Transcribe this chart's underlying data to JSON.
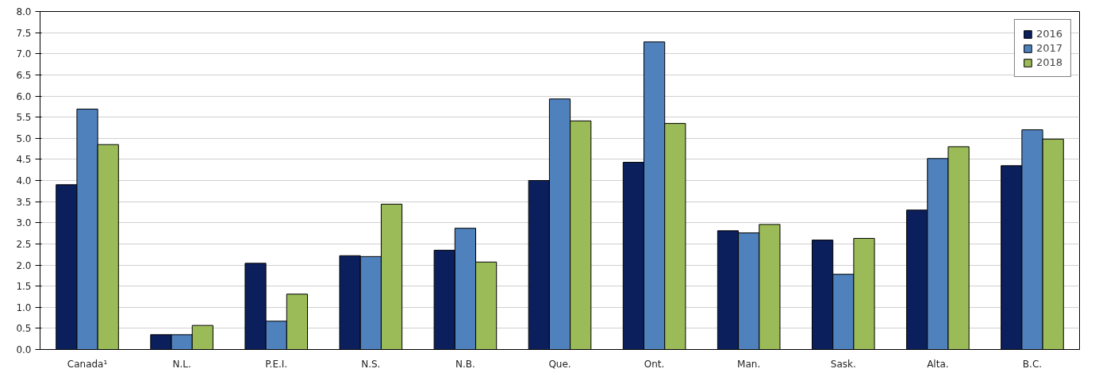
{
  "chart_data": {
    "type": "bar",
    "categories": [
      "Canada¹",
      "N.L.",
      "P.E.I.",
      "N.S.",
      "N.B.",
      "Que.",
      "Ont.",
      "Man.",
      "Sask.",
      "Alta.",
      "B.C."
    ],
    "series": [
      {
        "name": "2016",
        "color": "#0b1f5c",
        "values": [
          3.9,
          0.35,
          2.04,
          2.22,
          2.35,
          4.0,
          4.43,
          2.81,
          2.59,
          3.3,
          4.35
        ]
      },
      {
        "name": "2017",
        "color": "#4f81bd",
        "values": [
          5.69,
          0.35,
          0.67,
          2.2,
          2.87,
          5.93,
          7.28,
          2.76,
          1.78,
          4.52,
          5.2
        ]
      },
      {
        "name": "2018",
        "color": "#9bbb59",
        "values": [
          4.85,
          0.57,
          1.31,
          3.44,
          2.07,
          5.41,
          5.35,
          2.96,
          2.63,
          4.8,
          4.98
        ]
      }
    ],
    "ylim": [
      0,
      8
    ],
    "yticks": [
      {
        "value": 0,
        "label": "0.0"
      },
      {
        "value": 0.5,
        "label": "0.5"
      },
      {
        "value": 1,
        "label": "1.0"
      },
      {
        "value": 1.5,
        "label": "1.5"
      },
      {
        "value": 2,
        "label": "2.0"
      },
      {
        "value": 2.5,
        "label": "2.5"
      },
      {
        "value": 3,
        "label": "3.0"
      },
      {
        "value": 3.5,
        "label": "3.5"
      },
      {
        "value": 4,
        "label": "4.0"
      },
      {
        "value": 4.5,
        "label": "4.5"
      },
      {
        "value": 5,
        "label": "5.0"
      },
      {
        "value": 5.5,
        "label": "5.5"
      },
      {
        "value": 6,
        "label": "6.0"
      },
      {
        "value": 6.5,
        "label": "6.5"
      },
      {
        "value": 7,
        "label": "7.0"
      },
      {
        "value": 7.5,
        "label": "7.5"
      },
      {
        "value": 8,
        "label": "8.0"
      }
    ],
    "grid": "y",
    "legend": "top right"
  }
}
